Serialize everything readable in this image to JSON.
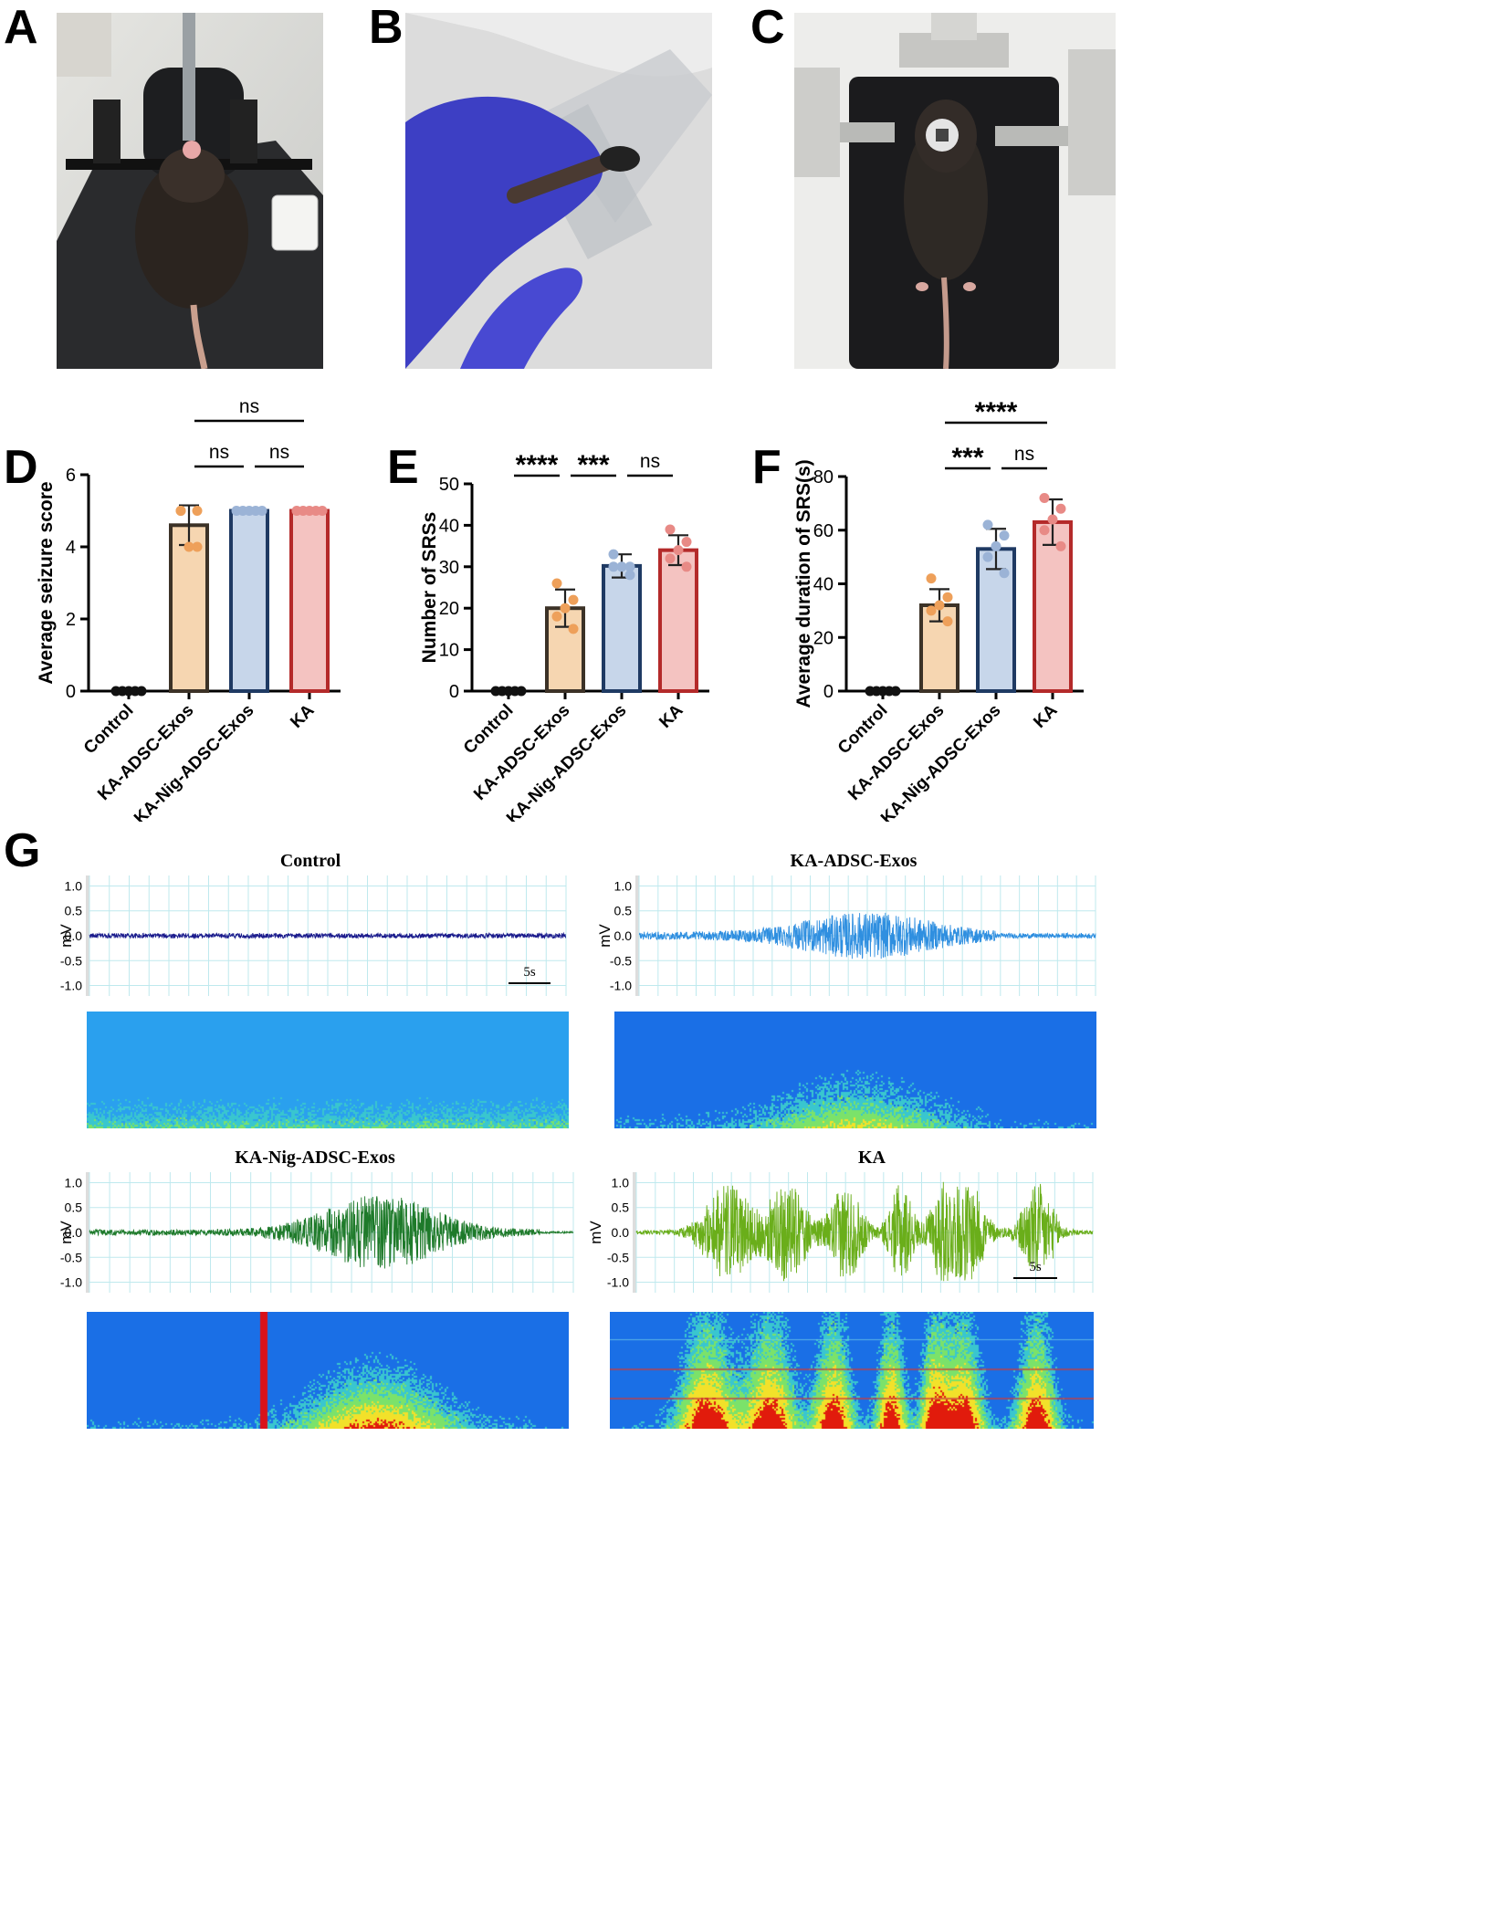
{
  "panels": {
    "A": "A",
    "B": "B",
    "C": "C",
    "D": "D",
    "E": "E",
    "F": "F",
    "G": "G"
  },
  "chart_data": [
    {
      "panel": "D",
      "type": "bar",
      "categories": [
        "Control",
        "KA-ADSC-Exos",
        "KA-Nig-ADSC-Exos",
        "KA"
      ],
      "values": [
        0,
        4.6,
        5.0,
        5.0
      ],
      "errors": [
        0,
        0.55,
        0,
        0
      ],
      "points": [
        [
          0,
          0,
          0,
          0,
          0
        ],
        [
          5,
          5,
          4,
          5,
          4
        ],
        [
          5,
          5,
          5,
          5,
          5
        ],
        [
          5,
          5,
          5,
          5,
          5
        ]
      ],
      "ylabel": "Average seizure score",
      "ylim": [
        0,
        6
      ],
      "yticks": [
        0,
        2,
        4,
        6
      ],
      "significance": [
        {
          "from": 1,
          "to": 3,
          "label": "ns",
          "level": 2
        },
        {
          "from": 1,
          "to": 2,
          "label": "ns",
          "level": 1
        },
        {
          "from": 2,
          "to": 3,
          "label": "ns",
          "level": 1
        }
      ]
    },
    {
      "panel": "E",
      "type": "bar",
      "categories": [
        "Control",
        "KA-ADSC-Exos",
        "KA-Nig-ADSC-Exos",
        "KA"
      ],
      "values": [
        0,
        20,
        30.2,
        34
      ],
      "errors": [
        0,
        4.5,
        2.8,
        3.6
      ],
      "points": [
        [
          0,
          0,
          0,
          0,
          0
        ],
        [
          26,
          22,
          20,
          18,
          15
        ],
        [
          33,
          30,
          30,
          30,
          28
        ],
        [
          39,
          36,
          34,
          32,
          30
        ]
      ],
      "ylabel": "Number of SRSs",
      "ylim": [
        0,
        50
      ],
      "yticks": [
        0,
        10,
        20,
        30,
        40,
        50
      ],
      "significance": [
        {
          "from": 0,
          "to": 1,
          "label": "****",
          "level": 1
        },
        {
          "from": 1,
          "to": 2,
          "label": "***",
          "level": 1
        },
        {
          "from": 2,
          "to": 3,
          "label": "ns",
          "level": 1
        }
      ]
    },
    {
      "panel": "F",
      "type": "bar",
      "categories": [
        "Control",
        "KA-ADSC-Exos",
        "KA-Nig-ADSC-Exos",
        "KA"
      ],
      "values": [
        0,
        32,
        53,
        63
      ],
      "errors": [
        0,
        6,
        7.5,
        8.5
      ],
      "points": [
        [
          0,
          0,
          0,
          0,
          0
        ],
        [
          42,
          35,
          32,
          30,
          26
        ],
        [
          62,
          58,
          54,
          50,
          44
        ],
        [
          72,
          68,
          64,
          60,
          54
        ]
      ],
      "ylabel": "Average duration of SRS(s)",
      "ylim": [
        0,
        80
      ],
      "yticks": [
        0,
        20,
        40,
        60,
        80
      ],
      "significance": [
        {
          "from": 1,
          "to": 3,
          "label": "****",
          "level": 2
        },
        {
          "from": 1,
          "to": 2,
          "label": "***",
          "level": 1
        },
        {
          "from": 2,
          "to": 3,
          "label": "ns",
          "level": 1
        }
      ]
    }
  ],
  "colors": {
    "control_fill": "#ffffff",
    "control_edge": "#111111",
    "adsc_fill": "#f6d6b1",
    "adsc_edge": "#3c3227",
    "adsc_dot": "#eea05a",
    "nig_fill": "#c7d6ea",
    "nig_edge": "#1f3a63",
    "nig_dot": "#9bb3d6",
    "ka_fill": "#f4c3c1",
    "ka_edge": "#b42a2a",
    "ka_dot": "#e88a86"
  },
  "eeg": {
    "ylabel": "mV",
    "yticks": [
      "1.0",
      "0.5",
      "0.0",
      "-0.5",
      "-1.0"
    ],
    "scale_label": "5s",
    "traces": [
      {
        "title": "Control",
        "color": "#1a1a8c",
        "profile": "flat"
      },
      {
        "title": "KA-ADSC-Exos",
        "color": "#2f8fe0",
        "profile": "mid"
      },
      {
        "title": "KA-Nig-ADSC-Exos",
        "color": "#1e7a2a",
        "profile": "spindle"
      },
      {
        "title": "KA",
        "color": "#6aae1a",
        "profile": "bursts"
      }
    ]
  }
}
